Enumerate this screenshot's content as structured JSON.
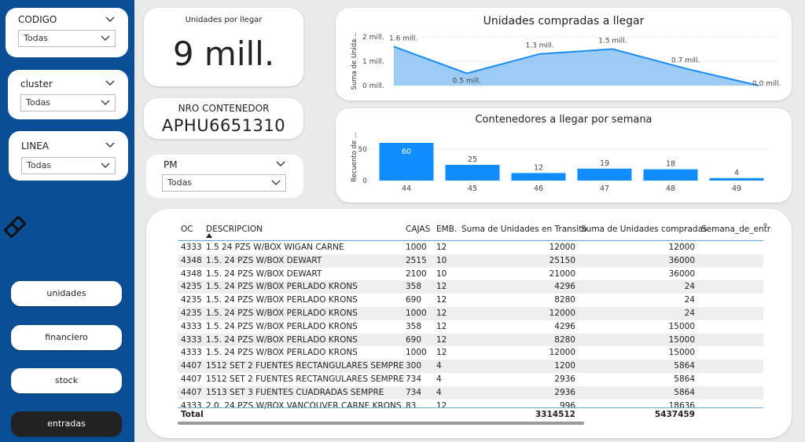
{
  "slicers": {
    "codigo": {
      "title": "CODIGO",
      "value": "Todas"
    },
    "cluster": {
      "title": "cluster",
      "value": "Todas"
    },
    "linea": {
      "title": "LINEA",
      "value": "Todas"
    },
    "pm": {
      "title": "PM",
      "value": "Todas"
    }
  },
  "nav": {
    "unidades": "unidades",
    "financiero": "financiero",
    "stock": "stock",
    "entradas": "entradas"
  },
  "kpi": {
    "label": "Unidades por llegar",
    "value": "9 mill."
  },
  "container": {
    "label": "NRO CONTENEDOR",
    "value": "APHU6651310"
  },
  "chart_data": [
    {
      "type": "area",
      "title": "Unidades compradas a llegar",
      "ylabel": "Suma de Unida...",
      "yticks": [
        "0 mill.",
        "1 mill.",
        "2 mill."
      ],
      "ylim": [
        0,
        2
      ],
      "values": [
        1.6,
        0.5,
        1.3,
        1.5,
        0.7,
        0.0
      ],
      "labels": [
        "1.6 mill.",
        "0.5 mill.",
        "1.3 mill.",
        "1.5 mill.",
        "0.7 mill.",
        "0.0 mill."
      ],
      "color": "#1a8cf0",
      "fill": "#9ccbf5"
    },
    {
      "type": "bar",
      "title": "Contenedores a llegar por semana",
      "ylabel": "Recuento de ...",
      "yticks": [
        "0",
        "50"
      ],
      "ylim": [
        0,
        65
      ],
      "categories": [
        "44",
        "45",
        "46",
        "47",
        "48",
        "49"
      ],
      "values": [
        60,
        25,
        12,
        19,
        18,
        4
      ],
      "color": "#118dff"
    }
  ],
  "table": {
    "headers": {
      "oc": "OC",
      "desc": "DESCRIPCION",
      "cajas": "CAJAS",
      "emb": "EMB.",
      "transito": "Suma de Unidades en Transito",
      "compradas": "Suma de Unidades compradas",
      "semana": "Semana_de_entr"
    },
    "rows": [
      {
        "oc": "4333",
        "desc": "1.5 24 PZS W/BOX WIGAN CARNE",
        "cajas": "1000",
        "emb": "12",
        "transito": "12000",
        "compradas": "12000"
      },
      {
        "oc": "4348",
        "desc": "1.5. 24 PZS W/BOX DEWART",
        "cajas": "2515",
        "emb": "10",
        "transito": "25150",
        "compradas": "36000"
      },
      {
        "oc": "4348",
        "desc": "1.5. 24 PZS W/BOX DEWART",
        "cajas": "2100",
        "emb": "10",
        "transito": "21000",
        "compradas": "36000"
      },
      {
        "oc": "4235",
        "desc": "1.5. 24 PZS W/BOX PERLADO KRONS",
        "cajas": "358",
        "emb": "12",
        "transito": "4296",
        "compradas": "24"
      },
      {
        "oc": "4235",
        "desc": "1.5. 24 PZS W/BOX PERLADO KRONS",
        "cajas": "690",
        "emb": "12",
        "transito": "8280",
        "compradas": "24"
      },
      {
        "oc": "4235",
        "desc": "1.5. 24 PZS W/BOX PERLADO KRONS",
        "cajas": "1000",
        "emb": "12",
        "transito": "12000",
        "compradas": "24"
      },
      {
        "oc": "4333",
        "desc": "1.5. 24 PZS W/BOX PERLADO KRONS",
        "cajas": "358",
        "emb": "12",
        "transito": "4296",
        "compradas": "15000"
      },
      {
        "oc": "4333",
        "desc": "1.5. 24 PZS W/BOX PERLADO KRONS",
        "cajas": "690",
        "emb": "12",
        "transito": "8280",
        "compradas": "15000"
      },
      {
        "oc": "4333",
        "desc": "1.5. 24 PZS W/BOX PERLADO KRONS",
        "cajas": "1000",
        "emb": "12",
        "transito": "12000",
        "compradas": "15000"
      },
      {
        "oc": "4407",
        "desc": "1512 SET 2 FUENTES RECTANGULARES SEMPRE",
        "cajas": "300",
        "emb": "4",
        "transito": "1200",
        "compradas": "5864"
      },
      {
        "oc": "4407",
        "desc": "1512 SET 2 FUENTES RECTANGULARES SEMPRE",
        "cajas": "734",
        "emb": "4",
        "transito": "2936",
        "compradas": "5864"
      },
      {
        "oc": "4407",
        "desc": "1513 SET 3 FUENTES CUADRADAS SEMPRE",
        "cajas": "734",
        "emb": "4",
        "transito": "2936",
        "compradas": "5864"
      },
      {
        "oc": "4333",
        "desc": "2.0. 24 PZS W/BOX VANCOUVER CARNE KRONS",
        "cajas": "83",
        "emb": "12",
        "transito": "996",
        "compradas": "18636"
      }
    ],
    "total": {
      "label": "Total",
      "transito": "3314512",
      "compradas": "5437459"
    }
  }
}
